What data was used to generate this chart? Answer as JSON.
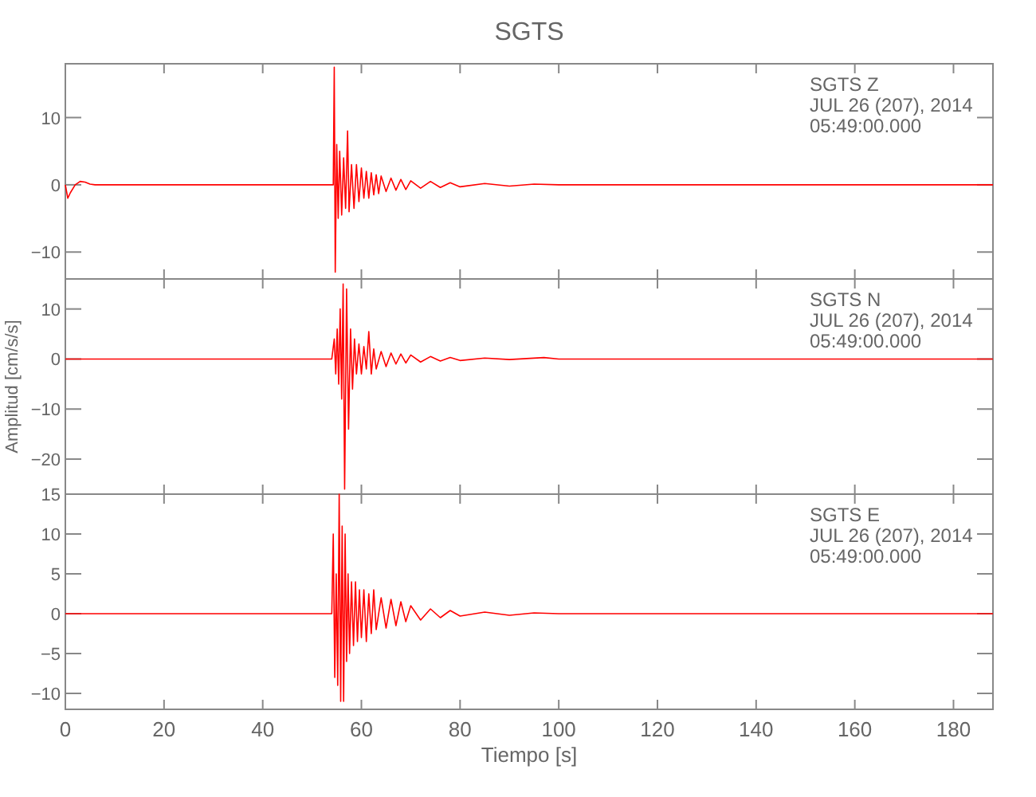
{
  "chart_data": [
    {
      "type": "line",
      "title": "SGTS",
      "annotations": [
        "SGTS   Z",
        "JUL 26 (207), 2014",
        "05:49:00.000"
      ],
      "xlim": [
        0,
        188
      ],
      "xticks": [
        0,
        20,
        40,
        60,
        80,
        100,
        120,
        140,
        160,
        180
      ],
      "ylim": [
        -14,
        18
      ],
      "yticks": [
        -10,
        0,
        10
      ],
      "tick_labels": "y",
      "x": [
        0,
        0.5,
        1,
        2,
        3,
        4,
        5,
        6,
        8,
        20,
        40,
        54.3,
        54.5,
        54.7,
        55,
        55.3,
        55.6,
        56,
        56.4,
        56.8,
        57.2,
        57.5,
        58,
        58.5,
        59,
        59.5,
        60,
        60.5,
        61,
        61.5,
        62,
        62.5,
        63,
        63.5,
        64,
        65,
        66,
        67,
        68,
        69,
        70,
        72,
        74,
        76,
        78,
        80,
        85,
        90,
        95,
        100,
        120,
        150,
        188
      ],
      "series": [
        {
          "color": "#ff0000",
          "values": [
            0,
            -2,
            -1.2,
            0,
            0.5,
            0.4,
            0.1,
            0,
            0,
            0,
            0,
            0,
            17.5,
            -13,
            6,
            -5,
            5,
            -4.5,
            4,
            -3.5,
            8,
            -4,
            3,
            -3.5,
            3,
            -2.5,
            2.5,
            -2,
            2,
            -2,
            1.8,
            -1.5,
            1.5,
            -1.3,
            1.3,
            -1,
            1,
            -0.8,
            0.8,
            -0.7,
            0.6,
            -0.5,
            0.5,
            -0.4,
            0.3,
            -0.3,
            0.2,
            -0.2,
            0.1,
            0,
            0,
            0,
            0
          ]
        }
      ]
    },
    {
      "type": "line",
      "ylabel": "Amplitud [cm/s/s]",
      "annotations": [
        "SGTS   N",
        "JUL 26 (207), 2014",
        "05:49:00.000"
      ],
      "xlim": [
        0,
        188
      ],
      "xticks": [
        0,
        20,
        40,
        60,
        80,
        100,
        120,
        140,
        160,
        180
      ],
      "ylim": [
        -27,
        16
      ],
      "yticks": [
        -20,
        -10,
        0,
        10
      ],
      "tick_labels": "y",
      "x": [
        0,
        54,
        54.5,
        54.8,
        55.1,
        55.4,
        55.7,
        56,
        56.3,
        56.6,
        57,
        57.4,
        57.8,
        58.2,
        58.6,
        59,
        59.5,
        60,
        60.5,
        61,
        61.5,
        62,
        62.5,
        63,
        64,
        65,
        66,
        67,
        68,
        69,
        70,
        72,
        74,
        76,
        78,
        80,
        85,
        90,
        97,
        100,
        120,
        188
      ],
      "series": [
        {
          "color": "#ff0000",
          "values": [
            0,
            0,
            4,
            -3,
            6,
            -5,
            10,
            -8,
            15,
            -26,
            14,
            -14,
            6,
            -6,
            4,
            -3,
            3,
            -3,
            2.5,
            -2,
            5.5,
            -3,
            2,
            -2,
            1.5,
            -1.5,
            1.2,
            -1,
            1,
            -0.8,
            0.8,
            -0.6,
            0.5,
            -0.4,
            0.3,
            -0.3,
            0.2,
            -0.1,
            0.3,
            0,
            0,
            0
          ]
        }
      ]
    },
    {
      "type": "line",
      "xlabel": "Tiempo [s]",
      "annotations": [
        "SGTS   E",
        "JUL 26 (207), 2014",
        "05:49:00.000"
      ],
      "xlim": [
        0,
        188
      ],
      "xticks": [
        0,
        20,
        40,
        60,
        80,
        100,
        120,
        140,
        160,
        180
      ],
      "ylim": [
        -12,
        15
      ],
      "yticks": [
        -10,
        -5,
        0,
        5,
        10,
        15
      ],
      "x": [
        0,
        54,
        54.3,
        54.6,
        54.9,
        55.2,
        55.5,
        55.8,
        56.1,
        56.4,
        56.7,
        57,
        57.3,
        57.6,
        58,
        58.4,
        58.8,
        59.2,
        59.6,
        60,
        60.5,
        61,
        61.5,
        62,
        62.5,
        63,
        64,
        65,
        66,
        67,
        68,
        69,
        70,
        72,
        74,
        76,
        78,
        80,
        85,
        90,
        95,
        100,
        120,
        188
      ],
      "series": [
        {
          "color": "#ff0000",
          "values": [
            0,
            0,
            10,
            -8,
            5,
            -9,
            15,
            -11,
            11,
            -11,
            10,
            -6,
            5,
            -5,
            4,
            -4,
            4,
            -3.5,
            3,
            -3,
            3,
            -3.5,
            2.5,
            -2.5,
            3,
            -2,
            2,
            -1.8,
            1.8,
            -1.5,
            1.5,
            -1,
            1,
            -0.8,
            0.6,
            -0.5,
            0.4,
            -0.3,
            0.2,
            -0.2,
            0.1,
            0,
            0,
            0
          ]
        }
      ]
    }
  ]
}
